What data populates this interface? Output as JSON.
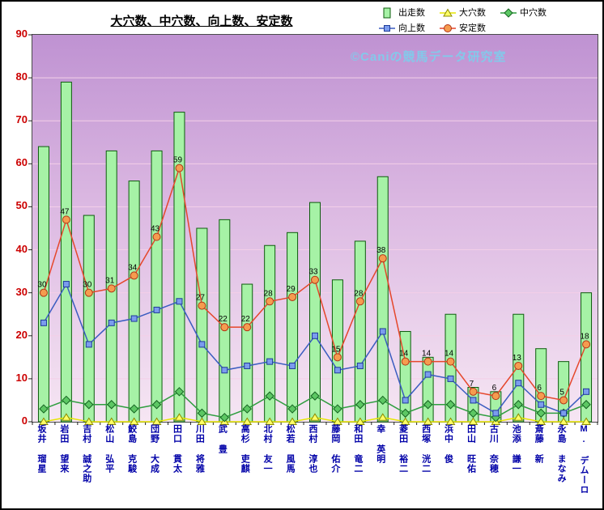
{
  "header": {
    "title": "大穴数、中穴数、向上数、安定数"
  },
  "watermark": "©Caniの競馬データ研究室",
  "chart_data": {
    "type": "bar",
    "subtype": "combo-bar-lines",
    "title": "大穴数、中穴数、向上数、安定数",
    "xlabel": "",
    "ylabel": "",
    "ylim": [
      0,
      90
    ],
    "ytick_step": 10,
    "y_ticks": [
      0,
      10,
      20,
      30,
      40,
      50,
      60,
      70,
      80,
      90
    ],
    "grid": true,
    "legend_position": "top",
    "categories": [
      "坂井 瑠星",
      "岩田 望来",
      "吉村 誠之助",
      "松山 弘平",
      "鮫島 克駿",
      "団野 大成",
      "田口 貫太",
      "川田 将雅",
      "武 豊",
      "高杉 吏麒",
      "北村 友一",
      "松若 風馬",
      "西村 淳也",
      "藤岡 佑介",
      "和田 竜二",
      "幸 英明",
      "菱田 裕二",
      "西塚 洸二",
      "浜中 俊",
      "田山 旺佑",
      "古川 奈穂",
      "池添 謙一",
      "斎藤 新",
      "永島 まなみ",
      "M. デムーロ"
    ],
    "series": [
      {
        "name": "出走数",
        "type": "bar",
        "values": [
          64,
          79,
          48,
          63,
          56,
          63,
          72,
          45,
          47,
          32,
          41,
          44,
          51,
          33,
          42,
          57,
          21,
          15,
          25,
          8,
          7,
          25,
          17,
          14,
          30
        ]
      },
      {
        "name": "向上数",
        "type": "line",
        "marker": "square",
        "values": [
          23,
          32,
          18,
          23,
          24,
          26,
          28,
          18,
          12,
          13,
          14,
          13,
          20,
          12,
          13,
          21,
          5,
          11,
          10,
          5,
          2,
          9,
          4,
          2,
          7
        ]
      },
      {
        "name": "大穴数",
        "type": "line",
        "marker": "triangle",
        "values": [
          0,
          1,
          0,
          0,
          0,
          0,
          1,
          0,
          0,
          0,
          0,
          0,
          1,
          0,
          0,
          1,
          0,
          0,
          0,
          0,
          0,
          1,
          0,
          0,
          0
        ]
      },
      {
        "name": "安定数",
        "type": "line",
        "marker": "circle",
        "show_labels": true,
        "values": [
          30,
          47,
          30,
          31,
          34,
          43,
          59,
          27,
          22,
          22,
          28,
          29,
          33,
          15,
          28,
          38,
          14,
          14,
          14,
          7,
          6,
          13,
          6,
          5,
          18
        ]
      },
      {
        "name": "中穴数",
        "type": "line",
        "marker": "diamond",
        "values": [
          3,
          5,
          4,
          4,
          3,
          4,
          7,
          2,
          1,
          3,
          6,
          3,
          6,
          3,
          4,
          5,
          2,
          4,
          4,
          2,
          1,
          4,
          2,
          2,
          4
        ]
      }
    ]
  },
  "colors": {
    "bar_fill": "#a6f2a6",
    "bar_stroke": "#0c5c0c",
    "kojo_line": "#3a5cc0",
    "kojo_marker": "#7b9cee",
    "kojo_stroke": "#1e3a99",
    "oana_line": "#e6e600",
    "oana_marker": "#ffff66",
    "oana_stroke": "#8a8a00",
    "antei_line": "#e5472b",
    "antei_marker": "#f59c4f",
    "antei_stroke": "#b23415",
    "chuana_line": "#2f9e3f",
    "chuana_marker": "#5cc763",
    "chuana_stroke": "#156321",
    "grid": "#f3cfe8",
    "y_label": "#cc0000",
    "x_label": "#0000a8",
    "watermark": "#7ecdeb",
    "plot_top": "#bf92d2",
    "plot_mid": "#dcb9e2",
    "plot_bottom": "#f6e6f3"
  }
}
